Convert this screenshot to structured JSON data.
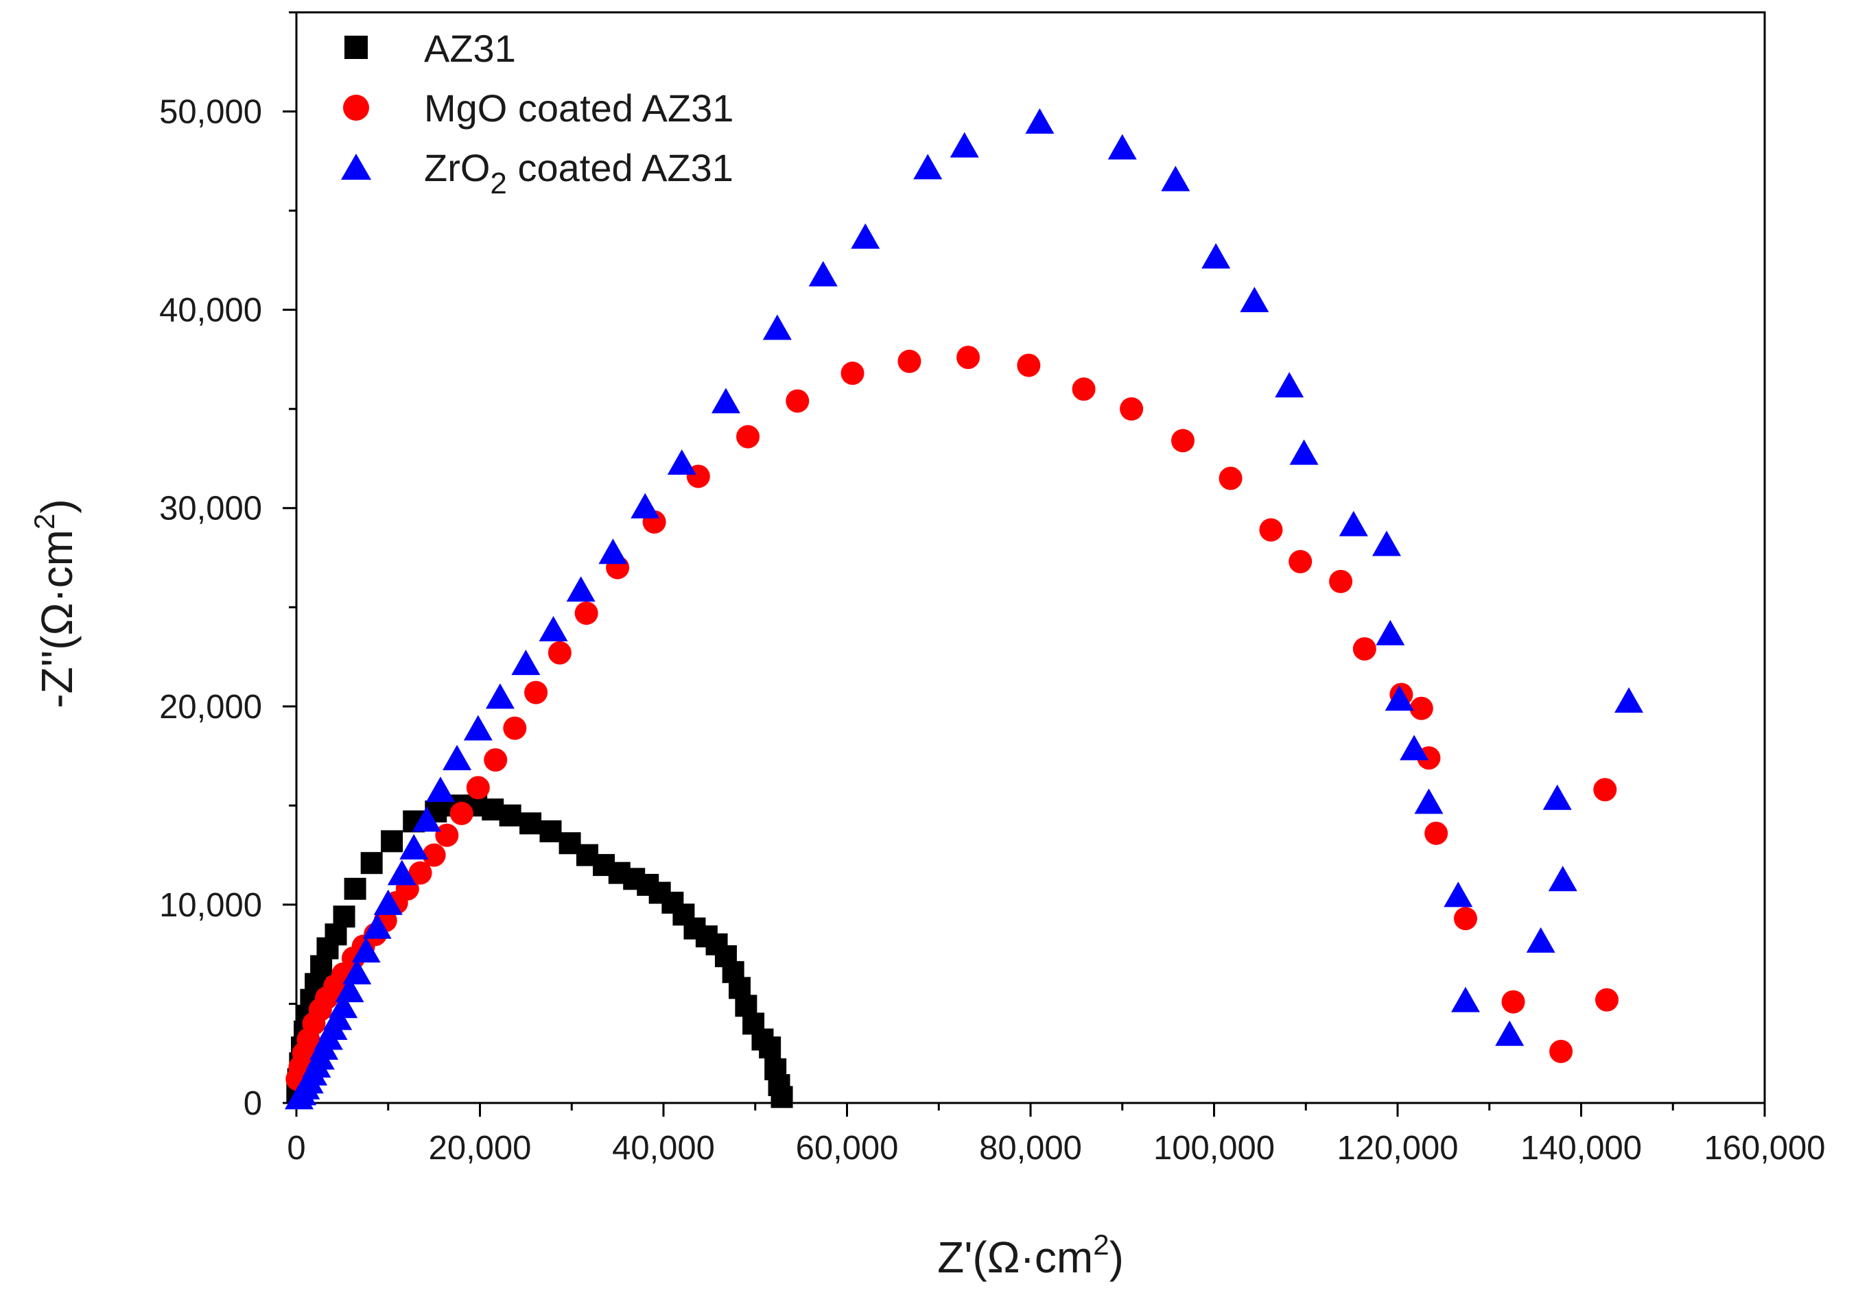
{
  "chart_data": {
    "type": "scatter",
    "title": "",
    "xlabel": {
      "main": "Z'(Ω·cm",
      "sup": "2",
      "end": ")"
    },
    "ylabel": {
      "main": "-Z''(Ω·cm",
      "sup": "2",
      "end": ")"
    },
    "xlim": [
      0,
      160000
    ],
    "ylim": [
      0,
      55000
    ],
    "xticks": [
      0,
      20000,
      40000,
      60000,
      80000,
      100000,
      120000,
      140000,
      160000
    ],
    "xtick_labels": [
      "0",
      "20,000",
      "40,000",
      "60,000",
      "80,000",
      "100,000",
      "120,000",
      "140,000",
      "160,000"
    ],
    "yticks": [
      0,
      10000,
      20000,
      30000,
      40000,
      50000
    ],
    "ytick_labels": [
      "0",
      "10,000",
      "20,000",
      "30,000",
      "40,000",
      "50,000"
    ],
    "legend_position": "top-left",
    "series": [
      {
        "name": "AZ31",
        "legend": {
          "text": "AZ31"
        },
        "marker": "square",
        "color": "#000000",
        "points": [
          [
            100,
            500
          ],
          [
            200,
            1200
          ],
          [
            400,
            2000
          ],
          [
            600,
            2800
          ],
          [
            900,
            3600
          ],
          [
            1200,
            4400
          ],
          [
            1600,
            5200
          ],
          [
            2100,
            6000
          ],
          [
            2700,
            6900
          ],
          [
            3400,
            7800
          ],
          [
            4300,
            8500
          ],
          [
            5200,
            9400
          ],
          [
            6400,
            10800
          ],
          [
            8200,
            12100
          ],
          [
            10400,
            13200
          ],
          [
            12800,
            14200
          ],
          [
            15200,
            14700
          ],
          [
            17400,
            15000
          ],
          [
            19600,
            15000
          ],
          [
            21400,
            14800
          ],
          [
            23300,
            14500
          ],
          [
            25500,
            14100
          ],
          [
            27700,
            13700
          ],
          [
            29800,
            13100
          ],
          [
            31700,
            12500
          ],
          [
            33500,
            12000
          ],
          [
            35200,
            11600
          ],
          [
            36800,
            11300
          ],
          [
            38300,
            11000
          ],
          [
            39600,
            10600
          ],
          [
            41000,
            10100
          ],
          [
            42200,
            9500
          ],
          [
            43400,
            8800
          ],
          [
            44700,
            8400
          ],
          [
            45800,
            8000
          ],
          [
            46800,
            7400
          ],
          [
            47600,
            6600
          ],
          [
            48300,
            5800
          ],
          [
            49000,
            4900
          ],
          [
            49800,
            4000
          ],
          [
            50800,
            3200
          ],
          [
            51600,
            2800
          ],
          [
            52200,
            1700
          ],
          [
            52600,
            900
          ],
          [
            52900,
            300
          ]
        ]
      },
      {
        "name": "MgO coated AZ31",
        "legend": {
          "text": "MgO coated AZ31"
        },
        "marker": "circle",
        "color": "#ff0000",
        "points": [
          [
            100,
            1200
          ],
          [
            400,
            1800
          ],
          [
            800,
            2500
          ],
          [
            1300,
            3200
          ],
          [
            1900,
            4000
          ],
          [
            2600,
            4700
          ],
          [
            3300,
            5300
          ],
          [
            4200,
            5900
          ],
          [
            5100,
            6500
          ],
          [
            6200,
            7300
          ],
          [
            7300,
            7900
          ],
          [
            8600,
            8500
          ],
          [
            9700,
            9200
          ],
          [
            10900,
            10100
          ],
          [
            12100,
            10800
          ],
          [
            13500,
            11600
          ],
          [
            15000,
            12500
          ],
          [
            16400,
            13500
          ],
          [
            18000,
            14600
          ],
          [
            19800,
            15900
          ],
          [
            21700,
            17300
          ],
          [
            23800,
            18900
          ],
          [
            26100,
            20700
          ],
          [
            28700,
            22700
          ],
          [
            31600,
            24700
          ],
          [
            35000,
            27000
          ],
          [
            39000,
            29300
          ],
          [
            43800,
            31600
          ],
          [
            49200,
            33600
          ],
          [
            54600,
            35400
          ],
          [
            60600,
            36800
          ],
          [
            66800,
            37400
          ],
          [
            73200,
            37600
          ],
          [
            79800,
            37200
          ],
          [
            85800,
            36000
          ],
          [
            91000,
            35000
          ],
          [
            96600,
            33400
          ],
          [
            101800,
            31500
          ],
          [
            106200,
            28900
          ],
          [
            109400,
            27300
          ],
          [
            113800,
            26300
          ],
          [
            116400,
            22900
          ],
          [
            120400,
            20600
          ],
          [
            122600,
            19900
          ],
          [
            123400,
            17400
          ],
          [
            124200,
            13600
          ],
          [
            127400,
            9300
          ],
          [
            132600,
            5100
          ],
          [
            137800,
            2600
          ],
          [
            142800,
            5200
          ],
          [
            142600,
            15800
          ]
        ]
      },
      {
        "name": "ZrO2 coated AZ31",
        "legend": {
          "text": "ZrO",
          "sub": "2",
          "tail": " coated AZ31"
        },
        "marker": "triangle",
        "color": "#0000ff",
        "points": [
          [
            300,
            200
          ],
          [
            600,
            400
          ],
          [
            1000,
            700
          ],
          [
            1400,
            1000
          ],
          [
            1800,
            1400
          ],
          [
            2200,
            1800
          ],
          [
            2600,
            2200
          ],
          [
            3000,
            2700
          ],
          [
            3500,
            3200
          ],
          [
            4000,
            3700
          ],
          [
            4500,
            4200
          ],
          [
            5100,
            4800
          ],
          [
            5800,
            5600
          ],
          [
            6600,
            6500
          ],
          [
            7600,
            7600
          ],
          [
            8800,
            8800
          ],
          [
            10000,
            10000
          ],
          [
            11500,
            11500
          ],
          [
            12800,
            12800
          ],
          [
            14200,
            14200
          ],
          [
            15700,
            15700
          ],
          [
            17500,
            17300
          ],
          [
            19800,
            18800
          ],
          [
            22200,
            20400
          ],
          [
            25000,
            22100
          ],
          [
            28000,
            23800
          ],
          [
            31000,
            25800
          ],
          [
            34500,
            27700
          ],
          [
            38000,
            30000
          ],
          [
            42000,
            32200
          ],
          [
            46800,
            35300
          ],
          [
            52400,
            39000
          ],
          [
            57400,
            41700
          ],
          [
            62000,
            43600
          ],
          [
            68800,
            47100
          ],
          [
            72800,
            48200
          ],
          [
            81000,
            49400
          ],
          [
            90000,
            48100
          ],
          [
            95800,
            46500
          ],
          [
            100200,
            42600
          ],
          [
            104400,
            40400
          ],
          [
            108200,
            36100
          ],
          [
            109800,
            32700
          ],
          [
            115200,
            29100
          ],
          [
            118800,
            28100
          ],
          [
            119200,
            23600
          ],
          [
            120200,
            20300
          ],
          [
            121800,
            17800
          ],
          [
            123400,
            15100
          ],
          [
            126600,
            10400
          ],
          [
            127400,
            5100
          ],
          [
            132200,
            3400
          ],
          [
            135600,
            8100
          ],
          [
            138000,
            11200
          ],
          [
            137400,
            15300
          ],
          [
            145200,
            20200
          ]
        ]
      }
    ]
  }
}
